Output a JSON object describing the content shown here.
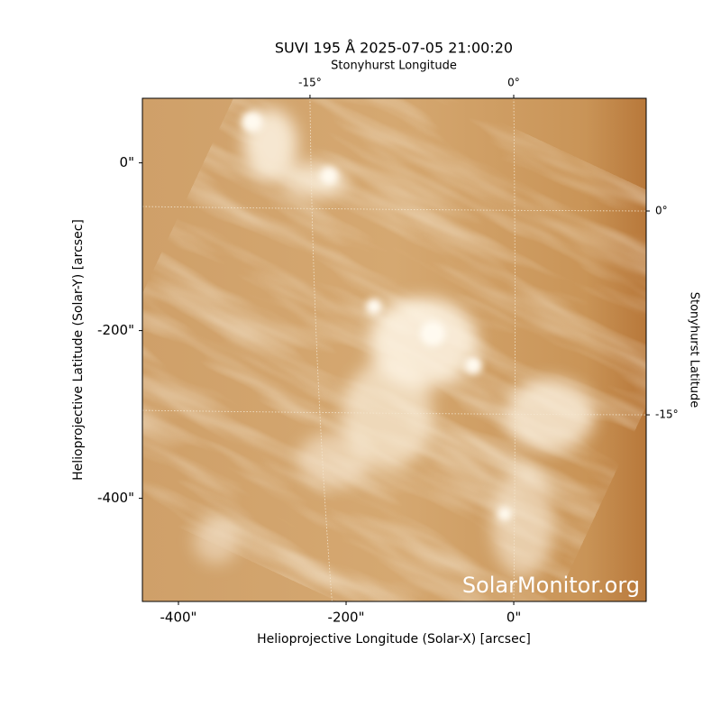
{
  "chart_data": {
    "type": "image",
    "title": "SUVI 195 Å 2025-07-05 21:00:20",
    "x_label": "Helioprojective Longitude (Solar-X) [arcsec]",
    "y_label": "Helioprojective Latitude (Solar-Y) [arcsec]",
    "top_label": "Stonyhurst Longitude",
    "right_label": "Stonyhurst Latitude",
    "watermark": "SolarMonitor.org",
    "xlim": [
      -443,
      158
    ],
    "ylim": [
      -523,
      77
    ],
    "xticks": [
      {
        "value": -400,
        "label": "-400\""
      },
      {
        "value": -200,
        "label": "-200\""
      },
      {
        "value": 0,
        "label": "0\""
      }
    ],
    "yticks": [
      {
        "value": 0,
        "label": "0\""
      },
      {
        "value": -200,
        "label": "-200\""
      },
      {
        "value": -400,
        "label": "-400\""
      }
    ],
    "lon_ticks": [
      {
        "value": -15,
        "label": "-15°"
      },
      {
        "value": 0,
        "label": "0°"
      }
    ],
    "lat_ticks": [
      {
        "value": 0,
        "label": "0°"
      },
      {
        "value": -15,
        "label": "-15°"
      }
    ],
    "grid": true
  }
}
